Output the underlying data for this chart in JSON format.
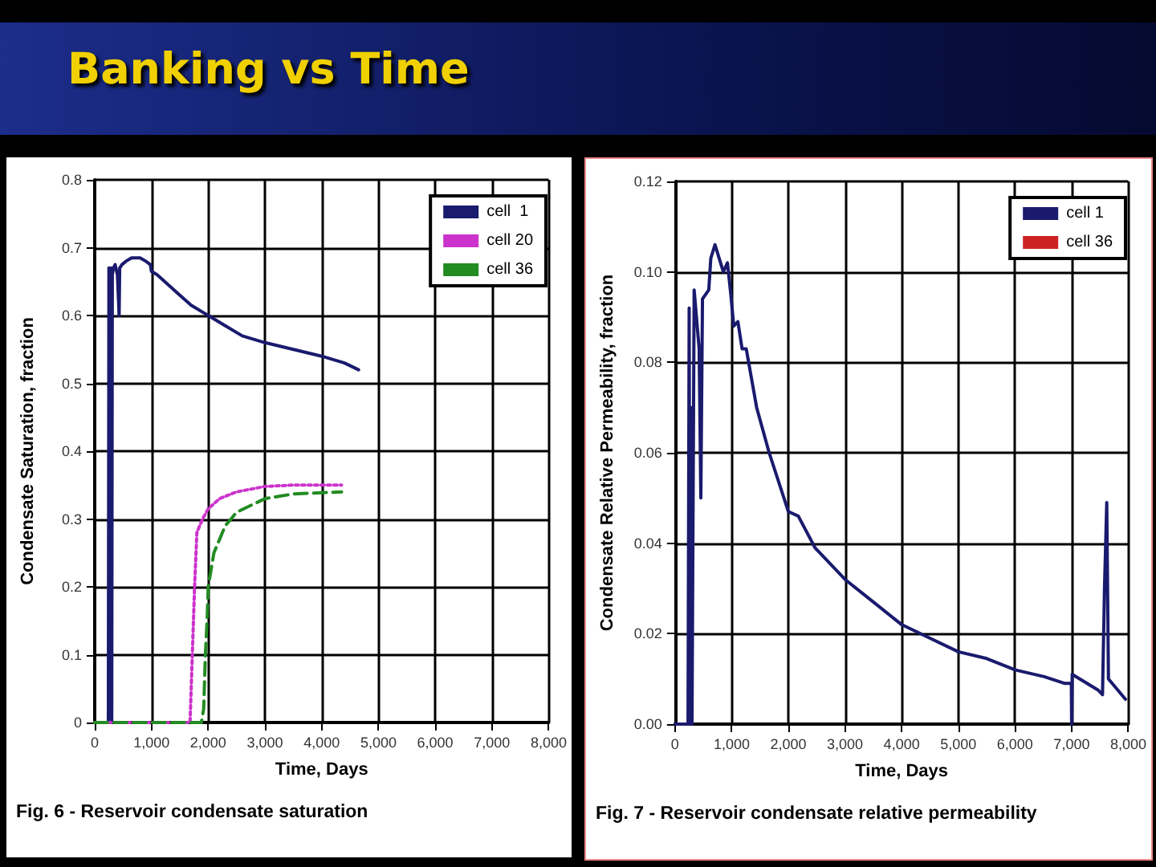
{
  "chart_data": [
    {
      "type": "line",
      "title": "Banking vs Time",
      "xlabel": "Time, Days",
      "ylabel": "Condensate Saturation, fraction",
      "annotations": [
        "Fig. 6 - Reservoir condensate saturation"
      ],
      "xlim": [
        0,
        8000
      ],
      "xticks": [
        0,
        {
          "value": 1000,
          "label": "1,000"
        },
        {
          "value": 2000,
          "label": "2,000"
        },
        {
          "value": 3000,
          "label": "3,000"
        },
        {
          "value": 4000,
          "label": "4,000"
        },
        {
          "value": 5000,
          "label": "5,000"
        },
        {
          "value": 6000,
          "label": "6,000"
        },
        {
          "value": 7000,
          "label": "7,000"
        },
        {
          "value": 8000,
          "label": "8,000"
        }
      ],
      "ylim": [
        0,
        0.8
      ],
      "yticks": [
        0,
        0.1,
        0.2,
        0.3,
        0.4,
        0.5,
        0.6,
        0.7,
        0.8
      ],
      "grid": true,
      "legend": "top right",
      "marker": "none",
      "series": [
        {
          "name": "cell  1",
          "color": "#1a1a6e",
          "line_style": "solid",
          "x": [
            0,
            240,
            250,
            265,
            280,
            290,
            300,
            310,
            330,
            360,
            400,
            430,
            440,
            480,
            550,
            650,
            800,
            900,
            980,
            1000,
            1100,
            1300,
            1500,
            1700,
            2000,
            2300,
            2600,
            3000,
            3500,
            4000,
            4400,
            4650
          ],
          "values": [
            0,
            0,
            0.67,
            0,
            0.62,
            0.67,
            0,
            0.66,
            0.67,
            0.675,
            0.66,
            0.6,
            0.67,
            0.675,
            0.68,
            0.685,
            0.685,
            0.68,
            0.675,
            0.665,
            0.66,
            0.645,
            0.63,
            0.615,
            0.6,
            0.585,
            0.57,
            0.56,
            0.55,
            0.54,
            0.53,
            0.52
          ]
        },
        {
          "name": "cell 20",
          "color": "#cc33cc",
          "line_style": "dotted",
          "x": [
            0,
            1680,
            1720,
            1760,
            1800,
            1900,
            2000,
            2200,
            2500,
            3000,
            3500,
            4350
          ],
          "values": [
            0,
            0,
            0.1,
            0.2,
            0.28,
            0.3,
            0.315,
            0.33,
            0.34,
            0.348,
            0.35,
            0.35
          ]
        },
        {
          "name": "cell 36",
          "color": "#228b22",
          "line_style": "dashed",
          "x": [
            0,
            1880,
            1920,
            1950,
            1980,
            2000,
            2100,
            2300,
            2500,
            3000,
            3500,
            4350
          ],
          "values": [
            0,
            0,
            0.02,
            0.1,
            0.15,
            0.2,
            0.25,
            0.29,
            0.31,
            0.33,
            0.337,
            0.34
          ]
        }
      ]
    },
    {
      "type": "line",
      "xlabel": "Time, Days",
      "ylabel": "Condensate Relative Permeability, fraction",
      "annotations": [
        "Fig. 7 - Reservoir condensate relative permeability"
      ],
      "xlim": [
        0,
        8000
      ],
      "xticks": [
        0,
        {
          "value": 1000,
          "label": "1,000"
        },
        {
          "value": 2000,
          "label": "2,000"
        },
        {
          "value": 3000,
          "label": "3,000"
        },
        {
          "value": 4000,
          "label": "4,000"
        },
        {
          "value": 5000,
          "label": "5,000"
        },
        {
          "value": 6000,
          "label": "6,000"
        },
        {
          "value": 7000,
          "label": "7,000"
        },
        {
          "value": 8000,
          "label": "8,000"
        }
      ],
      "ylim": [
        0,
        0.12
      ],
      "yticks": [
        {
          "value": 0,
          "label": "0.00"
        },
        {
          "value": 0.02,
          "label": "0.02"
        },
        {
          "value": 0.04,
          "label": "0.04"
        },
        {
          "value": 0.06,
          "label": "0.06"
        },
        {
          "value": 0.08,
          "label": "0.08"
        },
        {
          "value": 0.1,
          "label": "0.10"
        },
        {
          "value": 0.12,
          "label": "0.12"
        }
      ],
      "grid": true,
      "legend": "top right",
      "marker": "none",
      "series": [
        {
          "name": "cell 1",
          "color": "#1a1a6e",
          "line_style": "solid",
          "x": [
            0,
            230,
            250,
            265,
            285,
            300,
            338,
            426,
            456,
            485,
            596,
            632,
            706,
            853,
            926,
            985,
            1037,
            1110,
            1184,
            1257,
            1441,
            1662,
            2000,
            2176,
            2471,
            3000,
            3500,
            4000,
            4500,
            5000,
            5500,
            6000,
            6515,
            6882,
            6995,
            7000,
            7010,
            7470,
            7545,
            7580,
            7620,
            7650,
            7950
          ],
          "values": [
            0,
            0,
            0.092,
            0,
            0.07,
            0,
            0.096,
            0.083,
            0.05,
            0.094,
            0.096,
            0.103,
            0.106,
            0.1,
            0.102,
            0.095,
            0.088,
            0.089,
            0.083,
            0.083,
            0.07,
            0.06,
            0.047,
            0.046,
            0.039,
            0.032,
            0.027,
            0.022,
            0.019,
            0.016,
            0.0145,
            0.012,
            0.0105,
            0.009,
            0.009,
            0,
            0.011,
            0.0075,
            0.0065,
            0.03,
            0.049,
            0.01,
            0.0055
          ]
        },
        {
          "name": "cell 36",
          "color": "#cc2222",
          "line_style": "solid"
        }
      ]
    }
  ]
}
